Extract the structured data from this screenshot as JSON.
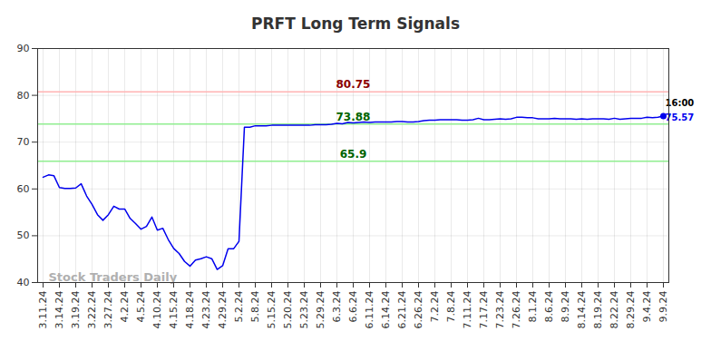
{
  "chart_data": {
    "type": "line",
    "title": "PRFT Long Term Signals",
    "watermark": "Stock Traders Daily",
    "last_time": "16:00",
    "color": "#0000ee",
    "grid": true,
    "ylim": [
      40,
      90
    ],
    "yticks": [
      40,
      50,
      60,
      70,
      80,
      90
    ],
    "levels": [
      {
        "value": 80.75,
        "color": "#ffb3b3",
        "label_color": "#8b0000"
      },
      {
        "value": 73.88,
        "color": "#90ee90",
        "label_color": "#006400"
      },
      {
        "value": 65.9,
        "color": "#90ee90",
        "label_color": "#006400"
      }
    ],
    "categories": [
      "3.11.24",
      null,
      null,
      "3.14.24",
      null,
      null,
      "3.19.24",
      null,
      null,
      "3.22.24",
      null,
      null,
      "3.27.24",
      null,
      null,
      "4.2.24",
      null,
      null,
      "4.5.24",
      null,
      null,
      "4.10.24",
      null,
      null,
      "4.15.24",
      null,
      null,
      "4.18.24",
      null,
      null,
      "4.23.24",
      null,
      null,
      "4.29.24",
      null,
      null,
      "5.2.24",
      null,
      null,
      "5.8.24",
      null,
      null,
      "5.15.24",
      null,
      null,
      "5.20.24",
      null,
      null,
      "5.23.24",
      null,
      null,
      "5.29.24",
      null,
      null,
      "6.3.24",
      null,
      null,
      "6.6.24",
      null,
      null,
      "6.11.24",
      null,
      null,
      "6.14.24",
      null,
      null,
      "6.21.24",
      null,
      null,
      "6.26.24",
      null,
      null,
      "7.2.24",
      null,
      null,
      "7.8.24",
      null,
      null,
      "7.11.24",
      null,
      null,
      "7.17.24",
      null,
      null,
      "7.23.24",
      null,
      null,
      "7.26.24",
      null,
      null,
      "8.1.24",
      null,
      null,
      "8.6.24",
      null,
      null,
      "8.9.24",
      null,
      null,
      "8.14.24",
      null,
      null,
      "8.19.24",
      null,
      null,
      "8.22.24",
      null,
      null,
      "8.29.24",
      null,
      null,
      "9.4.24",
      null,
      null,
      "9.9.24"
    ],
    "values": [
      62.5,
      63,
      62.8,
      60.3,
      60.1,
      60.1,
      60.2,
      61.1,
      58.5,
      56.7,
      54.5,
      53.3,
      54.5,
      56.3,
      55.7,
      55.7,
      53.7,
      52.6,
      51.4,
      52,
      54,
      51.2,
      51.6,
      49.2,
      47.3,
      46.2,
      44.5,
      43.5,
      44.8,
      45.1,
      45.5,
      45.1,
      42.8,
      43.6,
      47.2,
      47.2,
      48.8,
      73.2,
      73.2,
      73.5,
      73.5,
      73.5,
      73.6,
      73.6,
      73.6,
      73.6,
      73.6,
      73.6,
      73.6,
      73.6,
      73.7,
      73.7,
      73.7,
      73.8,
      74.0,
      73.9,
      74.2,
      74.1,
      74.2,
      74.3,
      74.2,
      74.3,
      74.3,
      74.3,
      74.3,
      74.4,
      74.4,
      74.3,
      74.3,
      74.4,
      74.6,
      74.7,
      74.7,
      74.8,
      74.8,
      74.8,
      74.8,
      74.7,
      74.7,
      74.8,
      75.1,
      74.8,
      74.8,
      74.9,
      75.0,
      74.9,
      75.0,
      75.3,
      75.3,
      75.2,
      75.2,
      75.0,
      75.0,
      75.0,
      75.1,
      75.0,
      75.0,
      75.0,
      74.9,
      75.0,
      74.9,
      75.0,
      75.0,
      75.0,
      74.9,
      75.1,
      74.9,
      75.0,
      75.1,
      75.1,
      75.1,
      75.3,
      75.2,
      75.3,
      75.57
    ]
  }
}
